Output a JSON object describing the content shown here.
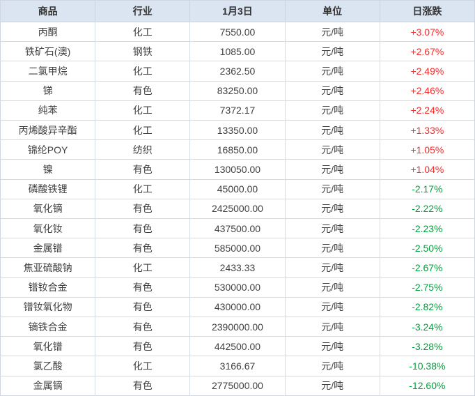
{
  "chart_data": {
    "type": "table",
    "title": "",
    "columns": [
      "商品",
      "行业",
      "1月3日",
      "单位",
      "日涨跌"
    ],
    "rows": [
      [
        "丙酮",
        "化工",
        "7550.00",
        "元/吨",
        "+3.07%"
      ],
      [
        "铁矿石(澳)",
        "钢铁",
        "1085.00",
        "元/吨",
        "+2.67%"
      ],
      [
        "二氯甲烷",
        "化工",
        "2362.50",
        "元/吨",
        "+2.49%"
      ],
      [
        "锑",
        "有色",
        "83250.00",
        "元/吨",
        "+2.46%"
      ],
      [
        "纯苯",
        "化工",
        "7372.17",
        "元/吨",
        "+2.24%"
      ],
      [
        "丙烯酸异辛酯",
        "化工",
        "13350.00",
        "元/吨",
        "+1.33%"
      ],
      [
        "锦纶POY",
        "纺织",
        "16850.00",
        "元/吨",
        "+1.05%"
      ],
      [
        "镍",
        "有色",
        "130050.00",
        "元/吨",
        "+1.04%"
      ],
      [
        "磷酸铁锂",
        "化工",
        "45000.00",
        "元/吨",
        "-2.17%"
      ],
      [
        "氧化镝",
        "有色",
        "2425000.00",
        "元/吨",
        "-2.22%"
      ],
      [
        "氧化钕",
        "有色",
        "437500.00",
        "元/吨",
        "-2.23%"
      ],
      [
        "金属镨",
        "有色",
        "585000.00",
        "元/吨",
        "-2.50%"
      ],
      [
        "焦亚硫酸钠",
        "化工",
        "2433.33",
        "元/吨",
        "-2.67%"
      ],
      [
        "镨钕合金",
        "有色",
        "530000.00",
        "元/吨",
        "-2.75%"
      ],
      [
        "镨钕氧化物",
        "有色",
        "430000.00",
        "元/吨",
        "-2.82%"
      ],
      [
        "镝铁合金",
        "有色",
        "2390000.00",
        "元/吨",
        "-3.24%"
      ],
      [
        "氧化镨",
        "有色",
        "442500.00",
        "元/吨",
        "-3.28%"
      ],
      [
        "氯乙酸",
        "化工",
        "3166.67",
        "元/吨",
        "-10.38%"
      ],
      [
        "金属镝",
        "有色",
        "2775000.00",
        "元/吨",
        "-12.60%"
      ]
    ]
  },
  "colors": {
    "header_bg": "#dbe5f1",
    "header_text": "#333333",
    "body_text": "#404040",
    "up": "#fa2a2a",
    "down": "#00a13c",
    "grid_vertical": "#d3dbe7",
    "grid_horizontal": "#d9d9d9"
  }
}
